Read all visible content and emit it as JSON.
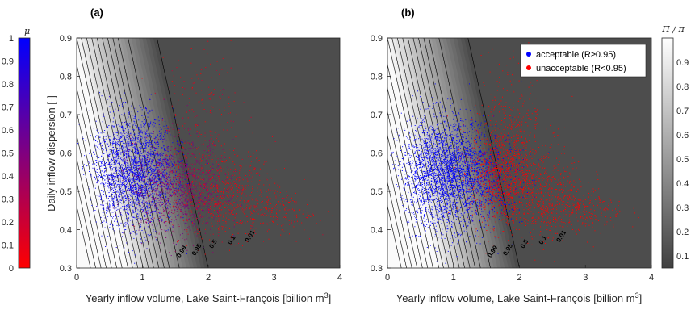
{
  "chart_data": [
    {
      "panel_label": "(a)",
      "type": "scatter",
      "xlabel": "Yearly inflow volume, Lake Saint-François [billion m",
      "xlabel_sup": "3",
      "xlabel_end": "]",
      "ylabel": "Daily inflow dispersion [-]",
      "xlim": [
        0,
        4
      ],
      "ylim": [
        0.3,
        0.9
      ],
      "xticks": [
        "0",
        "1",
        "2",
        "3",
        "4"
      ],
      "yticks": [
        "0.3",
        "0.4",
        "0.5",
        "0.6",
        "0.7",
        "0.8",
        "0.9"
      ],
      "background": "#4d4d4d",
      "point_color_by": "μ",
      "contour_labels": [
        "0.99",
        "0.95",
        "0.5",
        "0.1",
        "0.01"
      ],
      "colorbar": {
        "title": "μ",
        "side": "left",
        "ticks": [
          "0",
          "0.1",
          "0.2",
          "0.3",
          "0.4",
          "0.5",
          "0.6",
          "0.7",
          "0.8",
          "0.9",
          "1"
        ],
        "range": [
          0,
          1
        ],
        "colors": [
          "#ff0000",
          "#0000ff"
        ]
      },
      "point_clusters": [
        {
          "cx": 0.85,
          "cy": 0.55,
          "sx": 0.32,
          "sy": 0.07,
          "n": 2800,
          "mu": 1.0
        },
        {
          "cx": 1.55,
          "cy": 0.51,
          "sx": 0.35,
          "sy": 0.06,
          "n": 1300,
          "mu": 0.45
        },
        {
          "cx": 2.2,
          "cy": 0.5,
          "sx": 0.4,
          "sy": 0.06,
          "n": 700,
          "mu": 0.05
        },
        {
          "cx": 2.9,
          "cy": 0.45,
          "sx": 0.35,
          "sy": 0.03,
          "n": 260,
          "mu": 0.0
        },
        {
          "cx": 1.9,
          "cy": 0.7,
          "sx": 0.3,
          "sy": 0.08,
          "n": 220,
          "mu": 0.1
        }
      ]
    },
    {
      "panel_label": "(b)",
      "type": "scatter",
      "xlabel": "Yearly inflow volume, Lake Saint-François [billion m",
      "xlabel_sup": "3",
      "xlabel_end": "]",
      "xlim": [
        0,
        4
      ],
      "ylim": [
        0.3,
        0.9
      ],
      "xticks": [
        "0",
        "1",
        "2",
        "3",
        "4"
      ],
      "yticks": [
        "0.3",
        "0.4",
        "0.5",
        "0.6",
        "0.7",
        "0.8",
        "0.9"
      ],
      "background": "#4d4d4d",
      "contour_labels": [
        "0.99",
        "0.95",
        "0.5",
        "0.1",
        "0.01"
      ],
      "legend": {
        "position": "top-right",
        "entries": [
          {
            "label": "acceptable (R≥0.95)",
            "color": "#0000ff"
          },
          {
            "label": "unacceptable (R<0.95)",
            "color": "#ff0000"
          }
        ]
      },
      "colorbar": {
        "title": "Π / π",
        "side": "right",
        "ticks": [
          "0.1",
          "0.2",
          "0.3",
          "0.4",
          "0.5",
          "0.6",
          "0.7",
          "0.8",
          "0.9"
        ],
        "range": [
          0.05,
          1
        ],
        "colors": [
          "#404040",
          "#ffffff"
        ]
      },
      "point_clusters": [
        {
          "cx": 0.85,
          "cy": 0.55,
          "sx": 0.32,
          "sy": 0.07,
          "n": 2800,
          "class": "acceptable"
        },
        {
          "cx": 1.45,
          "cy": 0.53,
          "sx": 0.3,
          "sy": 0.06,
          "n": 700,
          "class": "acceptable"
        },
        {
          "cx": 1.75,
          "cy": 0.55,
          "sx": 0.25,
          "sy": 0.07,
          "n": 1100,
          "class": "unacceptable"
        },
        {
          "cx": 2.3,
          "cy": 0.5,
          "sx": 0.35,
          "sy": 0.06,
          "n": 600,
          "class": "unacceptable"
        },
        {
          "cx": 2.9,
          "cy": 0.45,
          "sx": 0.35,
          "sy": 0.03,
          "n": 260,
          "class": "unacceptable"
        },
        {
          "cx": 1.9,
          "cy": 0.7,
          "sx": 0.3,
          "sy": 0.08,
          "n": 220,
          "class": "unacceptable"
        }
      ]
    }
  ]
}
